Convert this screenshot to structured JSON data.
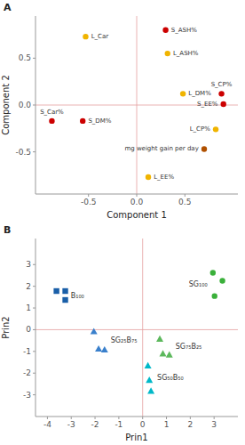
{
  "chart_data": [
    {
      "type": "scatter",
      "title": "A",
      "xlabel": "Component 1",
      "ylabel": "Component 2",
      "xlim": [
        -1.05,
        1.05
      ],
      "ylim": [
        -0.95,
        0.95
      ],
      "xticks": [
        -0.5,
        {
          "value": 0.0,
          "label": "0.0"
        },
        0.5
      ],
      "yticks": [
        -0.5,
        {
          "value": 0.0,
          "label": "0.0"
        },
        0.5
      ],
      "grid": false,
      "marker": "circle",
      "labels": [
        "L_Car",
        "S_ASH%",
        "L_ASH%",
        "L_DM%",
        "S_CP%",
        "S_EE%",
        "S_Car%",
        "S_DM%",
        "L_CP%",
        "mg weight gain per day",
        "L_EE%"
      ],
      "x": [
        -0.53,
        0.3,
        0.32,
        0.48,
        0.88,
        0.9,
        -0.88,
        -0.56,
        0.82,
        0.7,
        0.12
      ],
      "values": [
        0.73,
        0.8,
        0.55,
        0.12,
        0.12,
        0.01,
        -0.17,
        -0.17,
        -0.26,
        -0.47,
        -0.77
      ],
      "colors": [
        "#f0b400",
        "#cc0000",
        "#f0b400",
        "#f0b400",
        "#cc0000",
        "#cc0000",
        "#cc0000",
        "#cc0000",
        "#f0b400",
        "#b05000",
        "#f0b400"
      ]
    },
    {
      "type": "scatter",
      "title": "B",
      "xlabel": "Prin1",
      "ylabel": "Prin2",
      "xlim": [
        -4.5,
        4.0
      ],
      "ylim": [
        -4.0,
        4.2
      ],
      "xticks": [
        -4,
        -3,
        -2,
        -1,
        0,
        1,
        2,
        3
      ],
      "yticks": [
        -3,
        -2,
        -1,
        0,
        1,
        2,
        3
      ],
      "grid": false,
      "series": [
        {
          "name": "B₁₀₀",
          "marker": "square",
          "color": "#1a5fa8",
          "x": [
            -3.62,
            -3.25,
            -3.25
          ],
          "values": [
            1.78,
            1.78,
            1.37
          ]
        },
        {
          "name": "SG₂₅B₇₅",
          "marker": "triangle",
          "color": "#3a80cc",
          "x": [
            -2.05,
            -1.85,
            -1.6
          ],
          "values": [
            -0.08,
            -0.88,
            -0.92
          ]
        },
        {
          "name": "SG₅₀B₅₀",
          "marker": "triangle",
          "color": "#00b8c8",
          "x": [
            0.22,
            0.28,
            0.35
          ],
          "values": [
            -1.65,
            -2.32,
            -2.82
          ]
        },
        {
          "name": "SG₇₅B₂₅",
          "marker": "triangle",
          "color": "#5cb85c",
          "x": [
            0.72,
            0.85,
            1.12
          ],
          "values": [
            -0.42,
            -1.1,
            -1.15
          ]
        },
        {
          "name": "SG₁₀₀",
          "marker": "circle",
          "color": "#3ab03a",
          "x": [
            2.95,
            3.35,
            3.02
          ],
          "values": [
            2.62,
            2.25,
            1.55
          ]
        }
      ]
    }
  ]
}
